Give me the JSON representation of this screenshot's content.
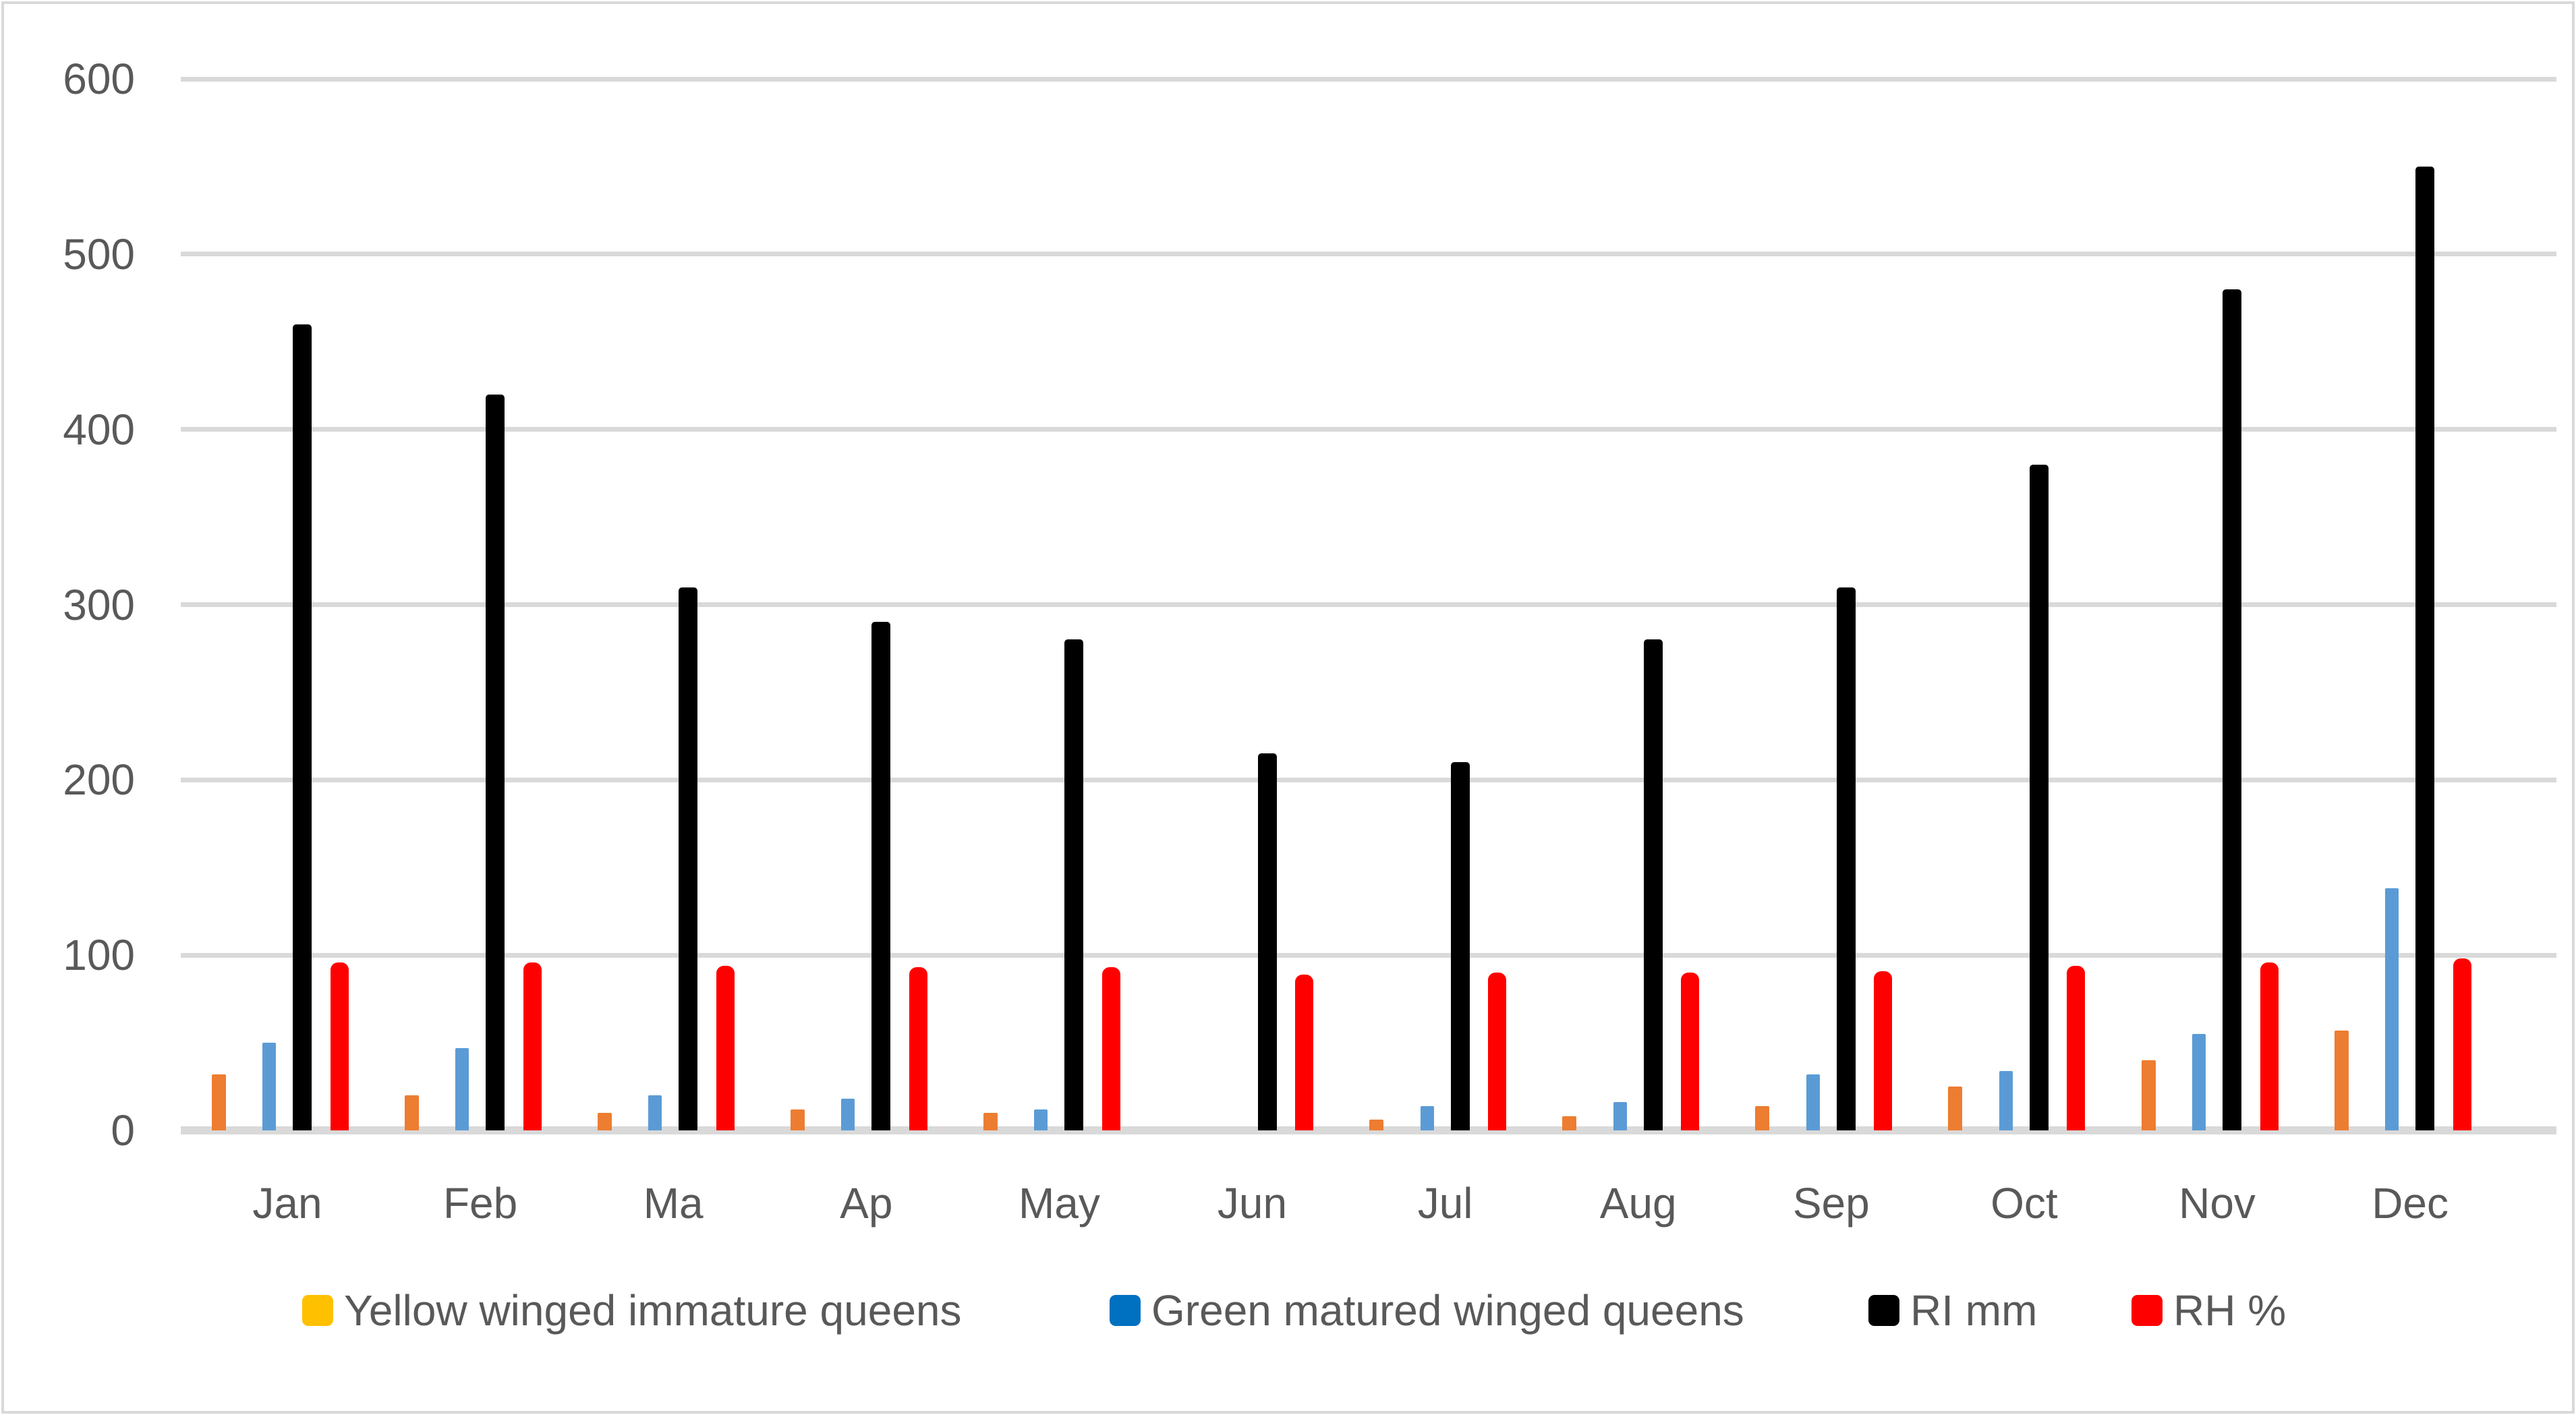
{
  "chart_data": {
    "type": "bar",
    "categories": [
      "Jan",
      "Feb",
      "Ma",
      "Ap",
      "May",
      "Jun",
      "Jul",
      "Aug",
      "Sep",
      "Oct",
      "Nov",
      "Dec"
    ],
    "series": [
      {
        "name": "Yellow winged immature queens",
        "legend_color": "#FFC000",
        "bar_color": "#ED7D31",
        "values": [
          32,
          20,
          10,
          12,
          10,
          0,
          6,
          8,
          14,
          25,
          40,
          57
        ]
      },
      {
        "name": "Green matured winged queens",
        "legend_color": "#0070C0",
        "bar_color": "#5B9BD5",
        "values": [
          50,
          47,
          20,
          18,
          12,
          0,
          14,
          16,
          32,
          34,
          55,
          138
        ]
      },
      {
        "name": "RI mm",
        "legend_color": "#000000",
        "bar_color": "#000000",
        "values": [
          460,
          420,
          310,
          290,
          280,
          215,
          210,
          280,
          310,
          380,
          480,
          550
        ]
      },
      {
        "name": "RH %",
        "legend_color": "#FF0000",
        "bar_color": "#FF0000",
        "values": [
          96,
          96,
          94,
          93,
          93,
          89,
          90,
          90,
          91,
          94,
          96,
          98
        ]
      }
    ],
    "y_axis": {
      "min": 0,
      "max": 600,
      "tick_step": 100,
      "tick_labels": [
        "0",
        "100",
        "200",
        "300",
        "400",
        "500",
        "600"
      ]
    },
    "x_axis": {
      "tick_labels": [
        "Jan",
        "Feb",
        "Ma",
        "Ap",
        "May",
        "Jun",
        "Jul",
        "Aug",
        "Sep",
        "Oct",
        "Nov",
        "Dec"
      ]
    },
    "grid": true,
    "legend_position": "bottom",
    "colors": {
      "gridline": "#D9D9D9",
      "axis_text": "#595959",
      "frame_border": "#D9D9D9",
      "background": "#FFFFFF"
    }
  }
}
